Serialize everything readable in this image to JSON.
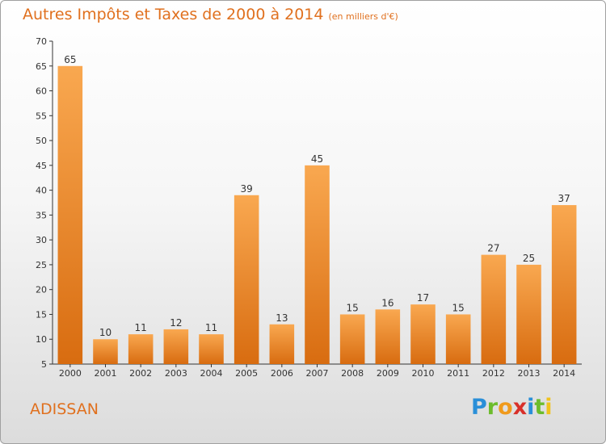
{
  "title": "Autres Impôts et Taxes de 2000 à 2014",
  "subtitle": "(en milliers d'€)",
  "commune": "ADISSAN",
  "logo": "Proxiti",
  "colors": {
    "title": "#e0701e",
    "bar_light": "#f8a54a",
    "bar_dark": "#d96d12",
    "axis": "#333333",
    "grid": "#d8d8d8"
  },
  "chart_data": {
    "type": "bar",
    "categories": [
      "2000",
      "2001",
      "2002",
      "2003",
      "2004",
      "2005",
      "2006",
      "2007",
      "2008",
      "2009",
      "2010",
      "2011",
      "2012",
      "2013",
      "2014"
    ],
    "values": [
      65,
      10,
      11,
      12,
      11,
      39,
      13,
      45,
      15,
      16,
      17,
      15,
      27,
      25,
      37
    ],
    "ylim": [
      5,
      70
    ],
    "yticks": [
      5,
      10,
      15,
      20,
      25,
      30,
      35,
      40,
      45,
      50,
      55,
      60,
      65,
      70
    ],
    "xlabel": "",
    "ylabel": "",
    "grid": false,
    "data_labels": true
  }
}
